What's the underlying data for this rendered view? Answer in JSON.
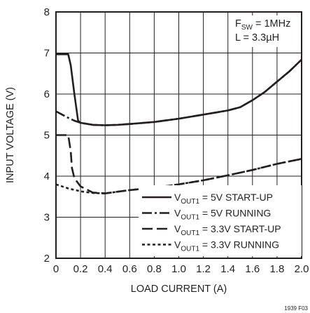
{
  "chart_data": {
    "type": "line",
    "xlabel": "LOAD CURRENT (A)",
    "ylabel": "INPUT VOLTAGE (V)",
    "xlim": [
      0,
      2.0
    ],
    "ylim": [
      2,
      8
    ],
    "x_ticks": [
      "0",
      "0.2",
      "0.4",
      "0.6",
      "0.8",
      "1.0",
      "1.2",
      "1.4",
      "1.6",
      "1.8",
      "2.0"
    ],
    "y_ticks": [
      "2",
      "3",
      "4",
      "5",
      "6",
      "7",
      "8"
    ],
    "grid": true,
    "annotation": {
      "line1": {
        "main": "F",
        "sub": "SW",
        "rest": " = 1MHz"
      },
      "line2": "L = 3.3µH"
    },
    "legend_position": "bottom-right",
    "series": [
      {
        "name": {
          "main": "V",
          "sub": "OUT1",
          "rest": " = 5V START-UP"
        },
        "style": "solid",
        "x": [
          0.0,
          0.1,
          0.12,
          0.15,
          0.18,
          0.2,
          0.3,
          0.4,
          0.5,
          0.6,
          0.8,
          1.0,
          1.2,
          1.4,
          1.5,
          1.6,
          1.7,
          1.8,
          1.9,
          2.0
        ],
        "y": [
          6.97,
          6.97,
          6.7,
          6.0,
          5.35,
          5.3,
          5.25,
          5.24,
          5.25,
          5.27,
          5.32,
          5.4,
          5.5,
          5.6,
          5.68,
          5.85,
          6.05,
          6.3,
          6.55,
          6.84
        ]
      },
      {
        "name": {
          "main": "V",
          "sub": "OUT1",
          "rest": " = 5V RUNNING"
        },
        "style": "dash-dot",
        "x": [
          0.0,
          0.05,
          0.1,
          0.15,
          0.2,
          0.3,
          0.4,
          0.5,
          0.6,
          0.8,
          1.0,
          1.2,
          1.4,
          1.5,
          1.6,
          1.7,
          1.8,
          1.9,
          2.0
        ],
        "y": [
          5.58,
          5.5,
          5.42,
          5.35,
          5.3,
          5.25,
          5.24,
          5.25,
          5.27,
          5.32,
          5.4,
          5.5,
          5.6,
          5.68,
          5.85,
          6.05,
          6.3,
          6.55,
          6.84
        ]
      },
      {
        "name": {
          "main": "V",
          "sub": "OUT1",
          "rest": " = 3.3V START-UP"
        },
        "style": "long-dash",
        "x": [
          0.0,
          0.1,
          0.12,
          0.13,
          0.15,
          0.2,
          0.3,
          0.4,
          0.5,
          0.6,
          0.8,
          1.0,
          1.2,
          1.4,
          1.6,
          1.8,
          2.0
        ],
        "y": [
          5.0,
          5.0,
          4.6,
          4.2,
          3.95,
          3.75,
          3.6,
          3.58,
          3.62,
          3.66,
          3.72,
          3.8,
          3.9,
          4.02,
          4.15,
          4.3,
          4.42
        ]
      },
      {
        "name": {
          "main": "V",
          "sub": "OUT1",
          "rest": " = 3.3V RUNNING"
        },
        "style": "short-dash",
        "x": [
          0.0,
          0.1,
          0.2,
          0.3,
          0.4,
          0.5,
          0.6,
          0.8,
          1.0,
          1.2,
          1.4,
          1.6,
          1.8,
          2.0
        ],
        "y": [
          3.8,
          3.7,
          3.63,
          3.59,
          3.58,
          3.62,
          3.66,
          3.72,
          3.8,
          3.9,
          4.02,
          4.15,
          4.3,
          4.42
        ]
      }
    ]
  },
  "figure_id": "1939 F03"
}
